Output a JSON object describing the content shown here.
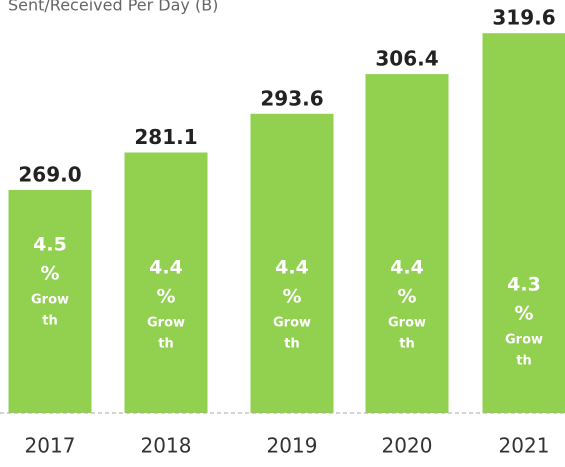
{
  "chart_data": {
    "type": "bar",
    "title": "Sent/Received Per Day (B)",
    "categories": [
      "2017",
      "2018",
      "2019",
      "2020",
      "2021"
    ],
    "values": [
      269.0,
      281.1,
      293.6,
      306.4,
      319.6
    ],
    "value_labels": [
      "269.0",
      "281.1",
      "293.6",
      "306.4",
      "319.6"
    ],
    "inner_labels": [
      [
        "4.5",
        "%",
        "Grow",
        "th"
      ],
      [
        "4.4",
        "%",
        "Grow",
        "th"
      ],
      [
        "4.4",
        "%",
        "Grow",
        "th"
      ],
      [
        "4.4",
        "%",
        "Grow",
        "th"
      ],
      [
        "4.3",
        "%",
        "Grow",
        "th"
      ]
    ],
    "color": "#92d050",
    "ylim": [
      197,
      330
    ]
  }
}
